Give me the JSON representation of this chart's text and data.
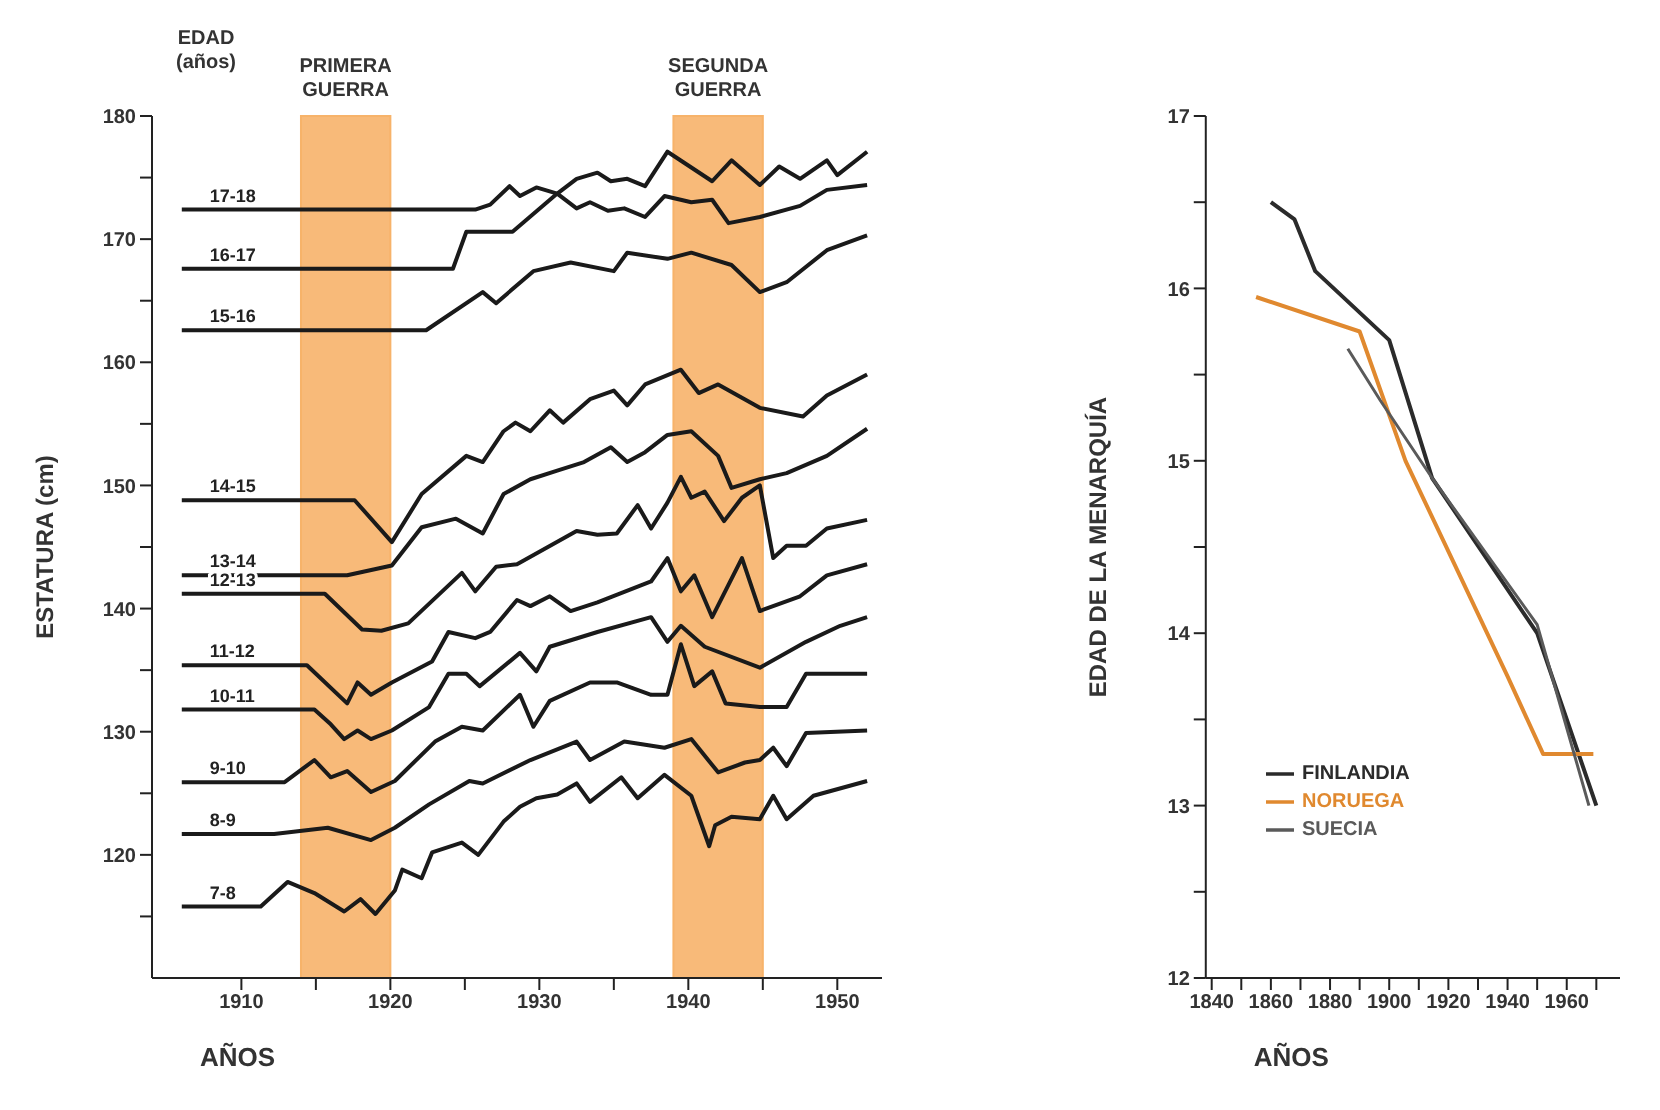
{
  "chart_data": [
    {
      "type": "line",
      "xlabel": "AÑOS",
      "ylabel": "ESTATURA (cm)",
      "legend_title": "EDAD (años)",
      "legend": false,
      "grid": false,
      "xlim": [
        1904,
        1953
      ],
      "xticks": [
        1910,
        {
          "value": 1915,
          "label": null
        },
        1920,
        {
          "value": 1925,
          "label": null
        },
        1930,
        {
          "value": 1935,
          "label": null
        },
        1940,
        {
          "value": 1945,
          "label": null
        },
        1950
      ],
      "ylim": [
        110,
        180
      ],
      "yticks": [
        {
          "value": 115,
          "label": null
        },
        120,
        {
          "value": 125,
          "label": null
        },
        130,
        {
          "value": 135,
          "label": null
        },
        140,
        {
          "value": 145,
          "label": null
        },
        150,
        {
          "value": 155,
          "label": null
        },
        160,
        {
          "value": 165,
          "label": null
        },
        170,
        {
          "value": 175,
          "label": null
        },
        180
      ],
      "bands": [
        {
          "axis": "x",
          "from": 1914,
          "to": 1920,
          "label": "PRIMERA GUERRA",
          "color": "#f7b36a"
        },
        {
          "axis": "x",
          "from": 1939,
          "to": 1945,
          "label": "SEGUNDA GUERRA",
          "color": "#f7b36a"
        }
      ],
      "series": [
        {
          "name": "17-18",
          "color": "#1a1a1a",
          "x": [
            1906,
            1925.7,
            1926.7,
            1928,
            1928.7,
            1929.8,
            1931.2,
            1932.5,
            1933.9,
            1934.8,
            1935.9,
            1937.1,
            1938.6,
            1941.6,
            1942.9,
            1944.8,
            1946.1,
            1947.5,
            1949.3,
            1950,
            1952
          ],
          "values": [
            172.4,
            172.4,
            172.8,
            174.3,
            173.5,
            174.2,
            173.7,
            174.9,
            175.4,
            174.7,
            174.9,
            174.3,
            177.1,
            174.7,
            176.4,
            174.4,
            175.9,
            174.9,
            176.4,
            175.2,
            177.1
          ]
        },
        {
          "name": "16-17",
          "color": "#1a1a1a",
          "x": [
            1906,
            1924.2,
            1925.1,
            1928.2,
            1931.2,
            1932.5,
            1933.4,
            1934.6,
            1935.7,
            1937.1,
            1938.4,
            1940.2,
            1941.6,
            1942.7,
            1944.8,
            1947.5,
            1949.3,
            1952
          ],
          "values": [
            167.6,
            167.6,
            170.6,
            170.6,
            173.7,
            172.5,
            173,
            172.3,
            172.5,
            171.8,
            173.5,
            173,
            173.2,
            171.3,
            171.8,
            172.7,
            174,
            174.4
          ]
        },
        {
          "name": "15-16",
          "color": "#1a1a1a",
          "x": [
            1906,
            1922.4,
            1926.2,
            1927.1,
            1929.6,
            1932.1,
            1935,
            1935.9,
            1938.6,
            1940.2,
            1942.9,
            1944.8,
            1946.6,
            1949.3,
            1952
          ],
          "values": [
            162.6,
            162.6,
            165.7,
            164.8,
            167.4,
            168.1,
            167.4,
            168.9,
            168.4,
            168.9,
            167.9,
            165.7,
            166.5,
            169.1,
            170.3
          ]
        },
        {
          "name": "14-15",
          "color": "#1a1a1a",
          "x": [
            1906,
            1917.6,
            1920.1,
            1922.1,
            1925.1,
            1926.2,
            1927.6,
            1928.4,
            1929.4,
            1930.7,
            1931.6,
            1933.4,
            1935,
            1935.9,
            1937.1,
            1939.5,
            1940.7,
            1942,
            1944.8,
            1947.7,
            1949.3,
            1952
          ],
          "values": [
            148.8,
            148.8,
            145.4,
            149.3,
            152.4,
            151.9,
            154.4,
            155.1,
            154.4,
            156.1,
            155.1,
            157,
            157.7,
            156.5,
            158.2,
            159.4,
            157.5,
            158.2,
            156.3,
            155.6,
            157.3,
            159
          ]
        },
        {
          "name": "13-14",
          "color": "#1a1a1a",
          "x": [
            1906,
            1917.1,
            1920.1,
            1922.1,
            1924.4,
            1926.2,
            1927.6,
            1929.4,
            1931.2,
            1933,
            1934.8,
            1935.9,
            1937.1,
            1938.6,
            1940.2,
            1942,
            1942.9,
            1944.8,
            1946.6,
            1949.3,
            1952
          ],
          "values": [
            142.7,
            142.7,
            143.5,
            146.6,
            147.3,
            146.1,
            149.3,
            150.5,
            151.2,
            151.9,
            153.1,
            151.9,
            152.7,
            154.1,
            154.4,
            152.4,
            149.8,
            150.5,
            151,
            152.4,
            154.6
          ]
        },
        {
          "name": "12-13",
          "color": "#1a1a1a",
          "x": [
            1906,
            1915.6,
            1918.1,
            1919.4,
            1921.2,
            1924.8,
            1925.7,
            1927.1,
            1928.5,
            1932.5,
            1933.9,
            1935.2,
            1936.6,
            1937.5,
            1938.6,
            1939.5,
            1940.2,
            1941.1,
            1942.4,
            1943.6,
            1944.8,
            1945.7,
            1946.6,
            1947.9,
            1949.3,
            1952
          ],
          "values": [
            141.2,
            141.2,
            138.3,
            138.2,
            138.8,
            142.9,
            141.4,
            143.4,
            143.6,
            146.3,
            146,
            146.1,
            148.4,
            146.5,
            148.6,
            150.7,
            149,
            149.5,
            147.1,
            149,
            150,
            144.1,
            145.1,
            145.1,
            146.5,
            147.2
          ]
        },
        {
          "name": "11-12",
          "color": "#1a1a1a",
          "x": [
            1906,
            1914.4,
            1917.1,
            1917.8,
            1918.7,
            1920.1,
            1922.8,
            1923.9,
            1925.7,
            1926.7,
            1928.5,
            1929.4,
            1930.7,
            1932.1,
            1933.9,
            1937.5,
            1938.6,
            1939.5,
            1940.4,
            1941.6,
            1943.6,
            1944.8,
            1947.5,
            1949.3,
            1952
          ],
          "values": [
            135.4,
            135.4,
            132.3,
            134,
            133,
            134,
            135.7,
            138.1,
            137.6,
            138.1,
            140.7,
            140.2,
            141,
            139.8,
            140.5,
            142.2,
            144.1,
            141.4,
            142.7,
            139.3,
            144.1,
            139.8,
            141,
            142.7,
            143.6
          ]
        },
        {
          "name": "10-11",
          "color": "#1a1a1a",
          "x": [
            1906,
            1914.9,
            1916,
            1916.9,
            1917.8,
            1918.7,
            1920.1,
            1922.6,
            1923.9,
            1925.1,
            1926,
            1928.7,
            1929.8,
            1930.7,
            1933.9,
            1937.5,
            1938.6,
            1939.5,
            1941.1,
            1944.8,
            1947.9,
            1950.2,
            1952
          ],
          "values": [
            131.8,
            131.8,
            130.6,
            129.4,
            130.1,
            129.4,
            130.1,
            132,
            134.7,
            134.7,
            133.7,
            136.4,
            134.9,
            136.9,
            138.1,
            139.3,
            137.3,
            138.6,
            136.9,
            135.2,
            137.3,
            138.6,
            139.3
          ]
        },
        {
          "name": "9-10",
          "color": "#1a1a1a",
          "x": [
            1906,
            1912.9,
            1914.9,
            1916,
            1917.1,
            1918.7,
            1920.3,
            1923,
            1924.8,
            1926.2,
            1928.7,
            1929.6,
            1930.7,
            1933.4,
            1935.2,
            1937.5,
            1938.6,
            1939.5,
            1940.4,
            1941.6,
            1942.5,
            1944.8,
            1946.6,
            1947.9,
            1952
          ],
          "values": [
            125.9,
            125.9,
            127.7,
            126.3,
            126.8,
            125.1,
            126,
            129.2,
            130.4,
            130.1,
            133,
            130.4,
            132.5,
            134,
            134,
            133,
            133,
            137.1,
            133.7,
            134.9,
            132.3,
            132,
            132,
            134.7,
            134.7
          ]
        },
        {
          "name": "8-9",
          "color": "#1a1a1a",
          "x": [
            1906,
            1912.2,
            1915.8,
            1918.7,
            1920.3,
            1922.6,
            1925.3,
            1926.2,
            1929.4,
            1932.5,
            1933.4,
            1935.7,
            1938.4,
            1940.2,
            1942,
            1943.8,
            1944.8,
            1945.7,
            1946.6,
            1947.9,
            1952
          ],
          "values": [
            121.7,
            121.7,
            122.2,
            121.2,
            122.2,
            124.1,
            126,
            125.8,
            127.7,
            129.2,
            127.7,
            129.2,
            128.7,
            129.4,
            126.7,
            127.5,
            127.7,
            128.7,
            127.2,
            129.9,
            130.1
          ]
        },
        {
          "name": "7-8",
          "color": "#1a1a1a",
          "x": [
            1906,
            1911.3,
            1913.1,
            1914.9,
            1916.9,
            1918,
            1919,
            1920.3,
            1920.8,
            1922.1,
            1922.8,
            1924.8,
            1925.9,
            1927.6,
            1928.7,
            1929.8,
            1931.2,
            1932.5,
            1933.4,
            1935.5,
            1936.6,
            1938.4,
            1940.2,
            1941.4,
            1941.8,
            1942.9,
            1944.8,
            1945.7,
            1946.6,
            1948.4,
            1952
          ],
          "values": [
            115.8,
            115.8,
            117.8,
            116.9,
            115.4,
            116.4,
            115.2,
            117.1,
            118.8,
            118.1,
            120.2,
            121,
            120,
            122.7,
            123.9,
            124.6,
            124.9,
            125.8,
            124.3,
            126.3,
            124.6,
            126.5,
            124.8,
            120.7,
            122.4,
            123.1,
            122.9,
            124.8,
            122.9,
            124.8,
            126
          ]
        }
      ]
    },
    {
      "type": "line",
      "xlabel": "AÑOS",
      "ylabel": "EDAD DE LA MENARQUÍA",
      "legend": "bottom left",
      "grid": false,
      "xlim": [
        1838,
        1978
      ],
      "xticks": [
        1840,
        {
          "value": 1850,
          "label": null
        },
        1860,
        {
          "value": 1870,
          "label": null
        },
        1880,
        {
          "value": 1890,
          "label": null
        },
        1900,
        {
          "value": 1910,
          "label": null
        },
        1920,
        {
          "value": 1930,
          "label": null
        },
        1940,
        {
          "value": 1950,
          "label": null
        },
        1960,
        {
          "value": 1970,
          "label": null
        }
      ],
      "ylim": [
        12,
        17
      ],
      "yticks": [
        12,
        {
          "value": 12.5,
          "label": null
        },
        13,
        {
          "value": 13.5,
          "label": null
        },
        14,
        {
          "value": 14.5,
          "label": null
        },
        15,
        {
          "value": 15.5,
          "label": null
        },
        16,
        {
          "value": 16.5,
          "label": null
        },
        17
      ],
      "series": [
        {
          "name": "FINLANDIA",
          "color": "#2b2b2b",
          "x": [
            1860,
            1868,
            1875,
            1900,
            1914.5,
            1950,
            1970
          ],
          "values": [
            16.5,
            16.4,
            16.1,
            15.7,
            14.9,
            14.0,
            13.0
          ]
        },
        {
          "name": "NORUEGA",
          "color": "#e0892f",
          "x": [
            1855,
            1890,
            1905.5,
            1940,
            1952,
            1969
          ],
          "values": [
            15.95,
            15.75,
            15.0,
            13.75,
            13.3,
            13.3
          ]
        },
        {
          "name": "SUECIA",
          "color": "#5a5a5a",
          "x": [
            1886,
            1897,
            1914.5,
            1950,
            1967.5
          ],
          "values": [
            15.65,
            15.35,
            14.9,
            14.05,
            13.0
          ]
        }
      ]
    }
  ]
}
